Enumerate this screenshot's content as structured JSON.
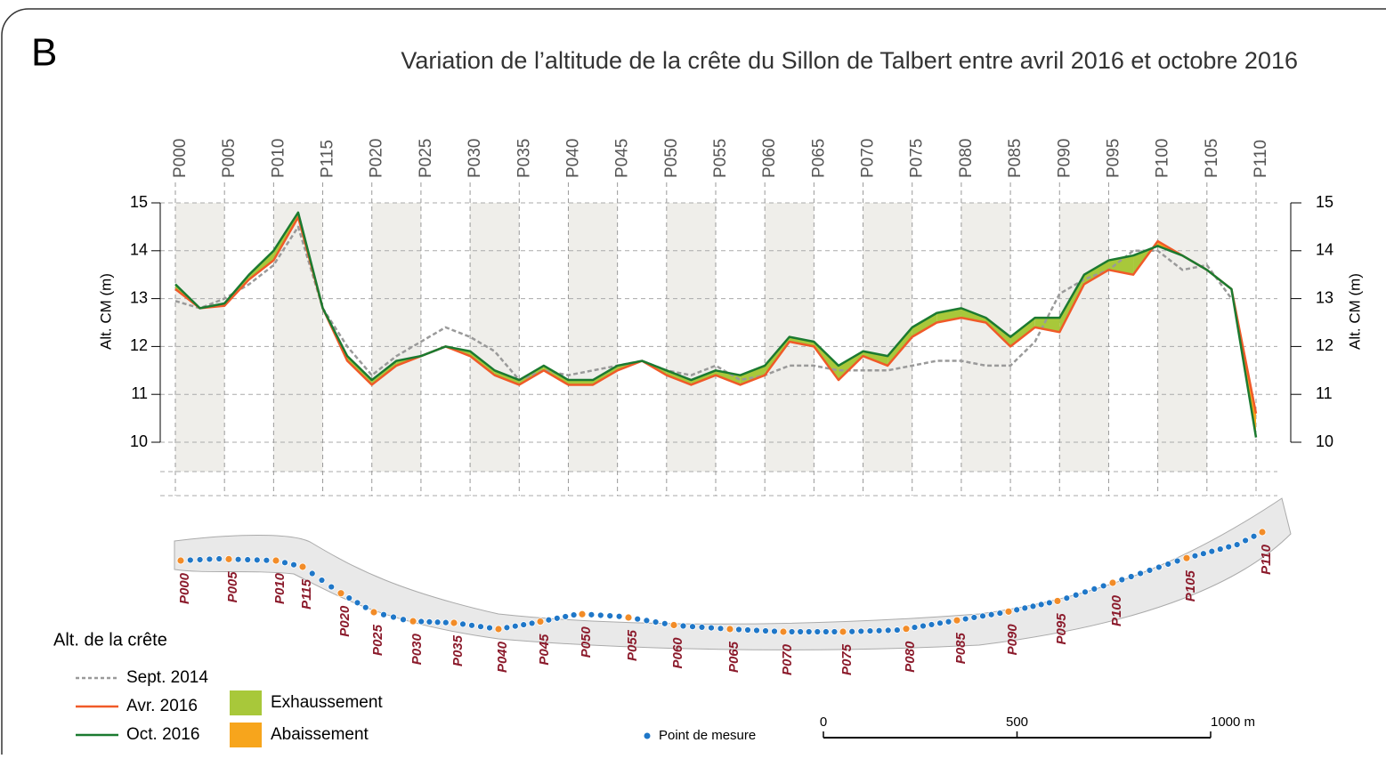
{
  "chart_data": {
    "type": "line",
    "panel_label": "B",
    "title": "Variation de l’altitude de la crête du Sillon de Talbert entre avril 2016 et octobre 2016",
    "y_label": "Alt. CM (m)",
    "y2_label": "Alt. CM (m)",
    "categories": [
      "P000",
      null,
      "P005",
      null,
      "P010",
      null,
      "P115",
      null,
      "P020",
      null,
      "P025",
      null,
      "P030",
      null,
      "P035",
      null,
      "P040",
      null,
      "P045",
      null,
      "P050",
      null,
      "P055",
      null,
      "P060",
      null,
      "P065",
      null,
      "P070",
      null,
      "P075",
      null,
      "P080",
      null,
      "P085",
      null,
      "P090",
      null,
      "P095",
      null,
      "P100",
      null,
      "P105",
      null,
      "P110"
    ],
    "series": [
      {
        "name": "Sept. 2014",
        "color": "#9a9a9a",
        "dashed": true,
        "values": [
          12.95,
          12.8,
          13.0,
          13.3,
          13.7,
          14.5,
          12.8,
          12.0,
          11.4,
          11.8,
          12.1,
          12.4,
          12.2,
          11.9,
          11.3,
          11.5,
          11.4,
          11.5,
          11.6,
          11.7,
          11.5,
          11.4,
          11.6,
          11.3,
          11.4,
          11.6,
          11.6,
          11.5,
          11.5,
          11.5,
          11.6,
          11.7,
          11.7,
          11.6,
          11.6,
          12.1,
          13.1,
          13.4,
          13.6,
          14.0,
          14.0,
          13.6,
          13.7,
          13.0,
          null
        ]
      },
      {
        "name": "Avr. 2016",
        "color": "#f05a28",
        "values": [
          13.2,
          12.8,
          12.85,
          13.4,
          13.8,
          14.7,
          12.8,
          11.7,
          11.2,
          11.6,
          11.8,
          12.0,
          11.8,
          11.4,
          11.2,
          11.5,
          11.2,
          11.2,
          11.5,
          11.7,
          11.4,
          11.2,
          11.4,
          11.2,
          11.4,
          12.1,
          12.0,
          11.3,
          11.8,
          11.6,
          12.2,
          12.5,
          12.6,
          12.5,
          12.0,
          12.4,
          12.3,
          13.3,
          13.6,
          13.5,
          14.2,
          13.9,
          13.6,
          13.2,
          10.6
        ]
      },
      {
        "name": "Oct. 2016",
        "color": "#1b7a30",
        "values": [
          13.3,
          12.8,
          12.9,
          13.5,
          14.0,
          14.8,
          12.8,
          11.8,
          11.3,
          11.7,
          11.8,
          12.0,
          11.9,
          11.5,
          11.3,
          11.6,
          11.3,
          11.3,
          11.6,
          11.7,
          11.5,
          11.3,
          11.5,
          11.4,
          11.6,
          12.2,
          12.1,
          11.6,
          11.9,
          11.8,
          12.4,
          12.7,
          12.8,
          12.6,
          12.2,
          12.6,
          12.6,
          13.5,
          13.8,
          13.9,
          14.1,
          13.9,
          13.6,
          13.2,
          10.1
        ]
      }
    ],
    "fills": [
      {
        "name": "Exhaussement",
        "color": "#a8c83a"
      },
      {
        "name": "Abaissement",
        "color": "#f7a51c"
      }
    ],
    "legend_title": "Alt. de la crête",
    "ylim": [
      10,
      15
    ],
    "yticks": [
      10,
      11,
      12,
      13,
      14,
      15
    ],
    "y2lim": [
      10,
      15
    ],
    "y2ticks": [
      10,
      11,
      12,
      13,
      14,
      15
    ]
  },
  "map": {
    "labels": [
      "P000",
      "P005",
      "P010",
      "P115",
      "P020",
      "P025",
      "P030",
      "P035",
      "P040",
      "P045",
      "P050",
      "P055",
      "P060",
      "P065",
      "P070",
      "P075",
      "P080",
      "P085",
      "P090",
      "P095",
      "P100",
      "P105",
      "P110"
    ],
    "point_label": "Point de mesure",
    "scale": {
      "lim": [
        0,
        1000
      ],
      "ticks": [
        0,
        500,
        {
          "value": 1000,
          "label": "1000 m"
        }
      ]
    }
  }
}
